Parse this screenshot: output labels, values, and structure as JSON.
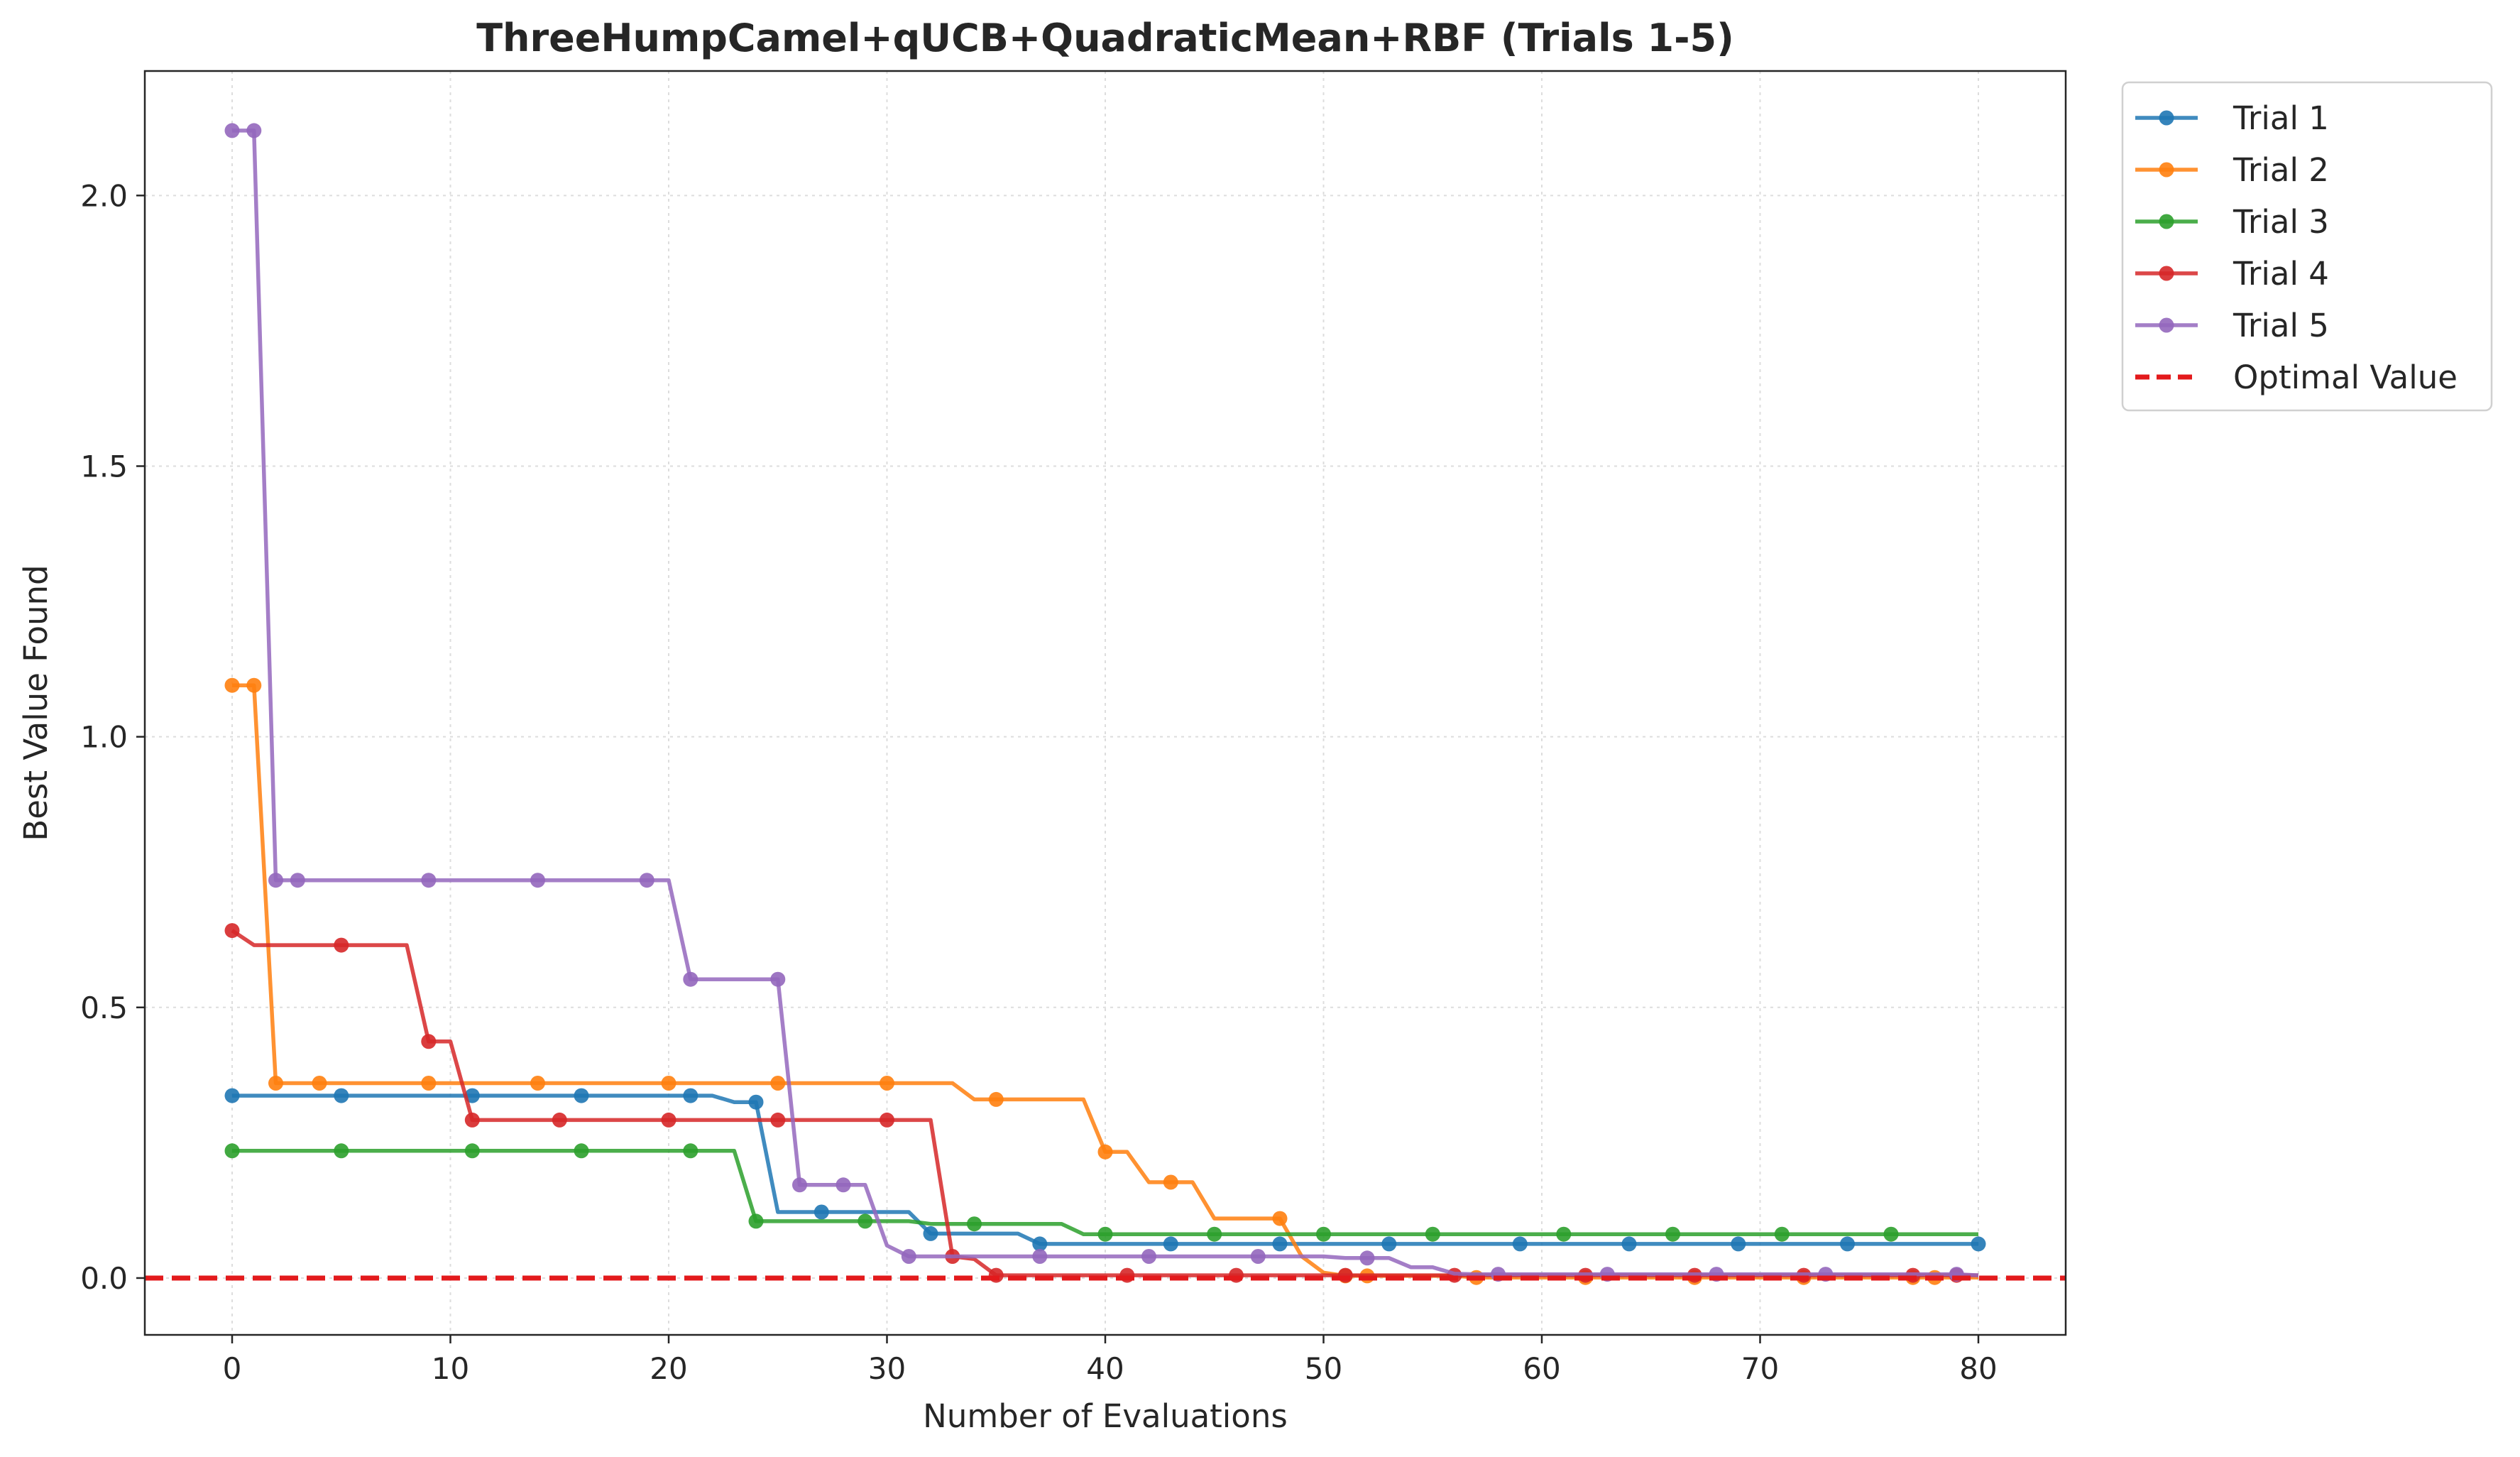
{
  "chart_data": {
    "type": "line",
    "title": "ThreeHumpCamel+qUCB+QuadraticMean+RBF (Trials 1-5)",
    "xlabel": "Number of Evaluations",
    "ylabel": "Best Value Found",
    "xlim": [
      -4,
      84
    ],
    "ylim": [
      -0.105,
      2.23
    ],
    "xticks": [
      0,
      10,
      20,
      30,
      40,
      50,
      60,
      70,
      80
    ],
    "xtick_labels": [
      "0",
      "10",
      "20",
      "30",
      "40",
      "50",
      "60",
      "70",
      "80"
    ],
    "yticks": [
      0.0,
      0.5,
      1.0,
      1.5,
      2.0
    ],
    "ytick_labels": [
      "0.0",
      "0.5",
      "1.0",
      "1.5",
      "2.0"
    ],
    "grid": true,
    "legend_position": "outside-top-right",
    "series": [
      {
        "name": "Trial 1",
        "color": "#1f77b4",
        "line": [
          [
            0,
            0.337
          ],
          [
            22,
            0.337
          ],
          [
            23,
            0.325
          ],
          [
            24,
            0.325
          ],
          [
            25,
            0.122
          ],
          [
            31,
            0.122
          ],
          [
            32,
            0.082
          ],
          [
            36,
            0.082
          ],
          [
            37,
            0.063
          ],
          [
            80,
            0.063
          ]
        ],
        "markers": [
          [
            0,
            0.337
          ],
          [
            5,
            0.337
          ],
          [
            11,
            0.337
          ],
          [
            16,
            0.337
          ],
          [
            21,
            0.337
          ],
          [
            24,
            0.325
          ],
          [
            27,
            0.122
          ],
          [
            32,
            0.082
          ],
          [
            37,
            0.063
          ],
          [
            43,
            0.063
          ],
          [
            48,
            0.063
          ],
          [
            53,
            0.063
          ],
          [
            59,
            0.063
          ],
          [
            64,
            0.063
          ],
          [
            69,
            0.063
          ],
          [
            74,
            0.063
          ],
          [
            80,
            0.063
          ]
        ]
      },
      {
        "name": "Trial 2",
        "color": "#ff7f0e",
        "line": [
          [
            0,
            1.095
          ],
          [
            1,
            1.095
          ],
          [
            2,
            0.36
          ],
          [
            33,
            0.36
          ],
          [
            34,
            0.33
          ],
          [
            39,
            0.33
          ],
          [
            40,
            0.233
          ],
          [
            41,
            0.233
          ],
          [
            42,
            0.177
          ],
          [
            44,
            0.177
          ],
          [
            45,
            0.11
          ],
          [
            48,
            0.11
          ],
          [
            49,
            0.04
          ],
          [
            50,
            0.01
          ],
          [
            51,
            0.004
          ],
          [
            56,
            0.004
          ],
          [
            57,
            0.001
          ],
          [
            80,
            0.001
          ]
        ],
        "markers": [
          [
            0,
            1.095
          ],
          [
            1,
            1.095
          ],
          [
            2,
            0.36
          ],
          [
            4,
            0.36
          ],
          [
            9,
            0.36
          ],
          [
            14,
            0.36
          ],
          [
            20,
            0.36
          ],
          [
            25,
            0.36
          ],
          [
            30,
            0.36
          ],
          [
            35,
            0.33
          ],
          [
            40,
            0.233
          ],
          [
            43,
            0.177
          ],
          [
            48,
            0.11
          ],
          [
            51,
            0.004
          ],
          [
            52,
            0.004
          ],
          [
            57,
            0.001
          ],
          [
            62,
            0.001
          ],
          [
            67,
            0.001
          ],
          [
            72,
            0.001
          ],
          [
            77,
            0.001
          ],
          [
            78,
            0.001
          ]
        ]
      },
      {
        "name": "Trial 3",
        "color": "#2ca02c",
        "line": [
          [
            0,
            0.235
          ],
          [
            23,
            0.235
          ],
          [
            24,
            0.105
          ],
          [
            31,
            0.105
          ],
          [
            32,
            0.1
          ],
          [
            38,
            0.1
          ],
          [
            39,
            0.081
          ],
          [
            80,
            0.081
          ]
        ],
        "markers": [
          [
            0,
            0.235
          ],
          [
            5,
            0.235
          ],
          [
            11,
            0.235
          ],
          [
            16,
            0.235
          ],
          [
            21,
            0.235
          ],
          [
            24,
            0.105
          ],
          [
            29,
            0.105
          ],
          [
            34,
            0.1
          ],
          [
            40,
            0.081
          ],
          [
            45,
            0.081
          ],
          [
            50,
            0.081
          ],
          [
            55,
            0.081
          ],
          [
            61,
            0.081
          ],
          [
            66,
            0.081
          ],
          [
            71,
            0.081
          ],
          [
            76,
            0.081
          ]
        ]
      },
      {
        "name": "Trial 4",
        "color": "#d62728",
        "line": [
          [
            0,
            0.642
          ],
          [
            1,
            0.615
          ],
          [
            8,
            0.615
          ],
          [
            9,
            0.437
          ],
          [
            10,
            0.437
          ],
          [
            11,
            0.292
          ],
          [
            32,
            0.292
          ],
          [
            33,
            0.04
          ],
          [
            34,
            0.035
          ],
          [
            35,
            0.005
          ],
          [
            80,
            0.005
          ]
        ],
        "markers": [
          [
            0,
            0.642
          ],
          [
            5,
            0.615
          ],
          [
            9,
            0.437
          ],
          [
            11,
            0.292
          ],
          [
            15,
            0.292
          ],
          [
            20,
            0.292
          ],
          [
            25,
            0.292
          ],
          [
            30,
            0.292
          ],
          [
            33,
            0.04
          ],
          [
            35,
            0.005
          ],
          [
            41,
            0.005
          ],
          [
            46,
            0.005
          ],
          [
            51,
            0.005
          ],
          [
            56,
            0.005
          ],
          [
            62,
            0.005
          ],
          [
            67,
            0.005
          ],
          [
            72,
            0.005
          ],
          [
            77,
            0.005
          ],
          [
            79,
            0.005
          ]
        ]
      },
      {
        "name": "Trial 5",
        "color": "#9467bd",
        "line": [
          [
            0,
            2.12
          ],
          [
            1,
            2.12
          ],
          [
            2,
            0.735
          ],
          [
            20,
            0.735
          ],
          [
            21,
            0.552
          ],
          [
            25,
            0.552
          ],
          [
            26,
            0.172
          ],
          [
            29,
            0.172
          ],
          [
            30,
            0.06
          ],
          [
            31,
            0.04
          ],
          [
            50,
            0.04
          ],
          [
            51,
            0.037
          ],
          [
            53,
            0.037
          ],
          [
            54,
            0.02
          ],
          [
            55,
            0.02
          ],
          [
            56,
            0.008
          ],
          [
            57,
            0.007
          ],
          [
            79,
            0.007
          ],
          [
            80,
            0.005
          ]
        ],
        "markers": [
          [
            0,
            2.12
          ],
          [
            1,
            2.12
          ],
          [
            2,
            0.735
          ],
          [
            3,
            0.735
          ],
          [
            9,
            0.735
          ],
          [
            14,
            0.735
          ],
          [
            19,
            0.735
          ],
          [
            21,
            0.552
          ],
          [
            25,
            0.552
          ],
          [
            26,
            0.172
          ],
          [
            28,
            0.172
          ],
          [
            31,
            0.04
          ],
          [
            37,
            0.04
          ],
          [
            42,
            0.04
          ],
          [
            47,
            0.04
          ],
          [
            52,
            0.037
          ],
          [
            58,
            0.007
          ],
          [
            63,
            0.007
          ],
          [
            68,
            0.007
          ],
          [
            73,
            0.007
          ],
          [
            79,
            0.007
          ]
        ]
      },
      {
        "name": "Optimal Value",
        "color": "#e31a1c",
        "dashed": true,
        "y": 0
      }
    ]
  }
}
